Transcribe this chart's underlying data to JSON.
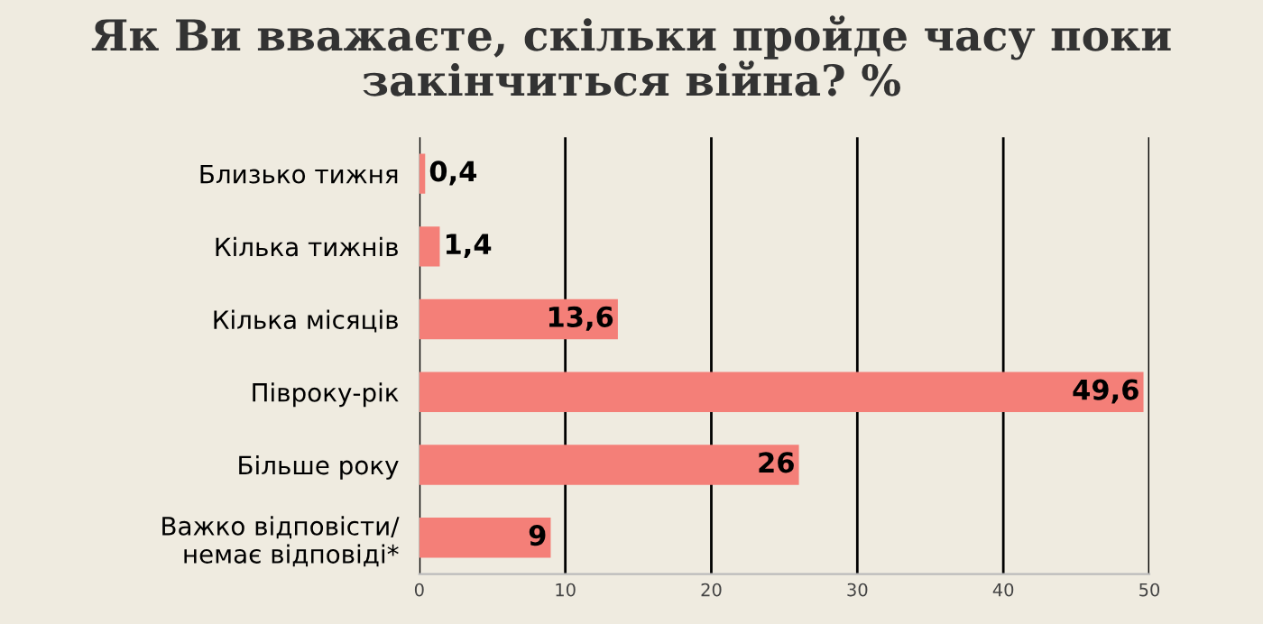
{
  "chart_data": {
    "type": "bar",
    "orientation": "horizontal",
    "title": "Як Ви вважаєте, скільки пройде часу поки\nзакінчиться війна? %",
    "categories": [
      "Близько тижня",
      "Кілька тижнів",
      "Кілька місяців",
      "Півроку-рік",
      "Більше року",
      "Важко відповісти/\nнемає відповіді*"
    ],
    "values": [
      0.4,
      1.4,
      13.6,
      49.6,
      26,
      9
    ],
    "value_labels": [
      "0,4",
      "1,4",
      "13,6",
      "49,6",
      "26",
      "9"
    ],
    "color": "#f47f78",
    "xlim": [
      0,
      50
    ],
    "xticks": [
      0,
      10,
      20,
      30,
      40,
      50
    ],
    "grid": "x",
    "legend": false
  }
}
